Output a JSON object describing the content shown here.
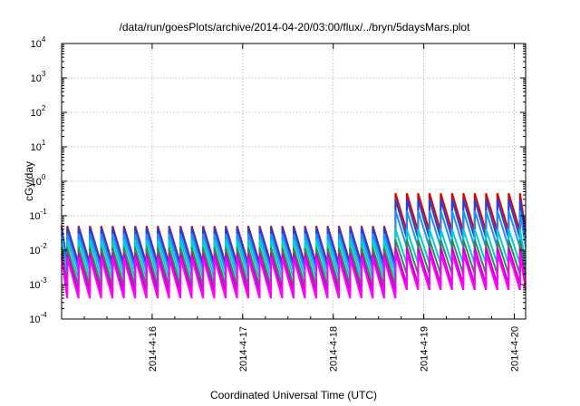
{
  "chart_data": {
    "type": "line",
    "title": "/data/run/goesPlots/archive/2014-04-20/03:00/flux/../bryn/5daysMars.plot",
    "xlabel": "Coordinated Universal Time (UTC)",
    "ylabel": "cGy/day",
    "xlim": [
      "2014-04-15T00:00",
      "2014-04-20T03:00"
    ],
    "ylim": [
      0.0001,
      10000
    ],
    "yscale": "log",
    "grid": true,
    "xticks": [
      "2014-4-16",
      "2014-4-17",
      "2014-4-18",
      "2014-4-19",
      "2014-4-20"
    ],
    "yticks": [
      {
        "base": "10",
        "exp": "-4"
      },
      {
        "base": "10",
        "exp": "-3"
      },
      {
        "base": "10",
        "exp": "-2"
      },
      {
        "base": "10",
        "exp": "-1"
      },
      {
        "base": "10",
        "exp": "0"
      },
      {
        "base": "10",
        "exp": "1"
      },
      {
        "base": "10",
        "exp": "2"
      },
      {
        "base": "10",
        "exp": "3"
      },
      {
        "base": "10",
        "exp": "4"
      }
    ],
    "waveform": {
      "period_hours": 3,
      "step_time": "2014-04-18T16:30"
    },
    "series": [
      {
        "color": "#e00000",
        "peak_early": 0.05,
        "trough_early": 0.004,
        "peak_late": 0.45,
        "trough_late": 0.035
      },
      {
        "color": "#2040e0",
        "peak_early": 0.045,
        "trough_early": 0.0035,
        "peak_late": 0.3,
        "trough_late": 0.022
      },
      {
        "color": "#1e90ff",
        "peak_early": 0.03,
        "trough_early": 0.0025,
        "peak_late": 0.14,
        "trough_late": 0.012
      },
      {
        "color": "#00ced1",
        "peak_early": 0.02,
        "trough_early": 0.0015,
        "peak_late": 0.04,
        "trough_late": 0.004
      },
      {
        "color": "#2e8b57",
        "peak_early": 0.012,
        "trough_early": 0.0009,
        "peak_late": 0.02,
        "trough_late": 0.002
      },
      {
        "color": "#cc00cc",
        "peak_early": 0.008,
        "trough_early": 0.0006,
        "peak_late": 0.012,
        "trough_late": 0.001
      },
      {
        "color": "#ff00ff",
        "peak_early": 0.006,
        "trough_early": 0.0004,
        "peak_late": 0.008,
        "trough_late": 0.0007
      }
    ]
  }
}
